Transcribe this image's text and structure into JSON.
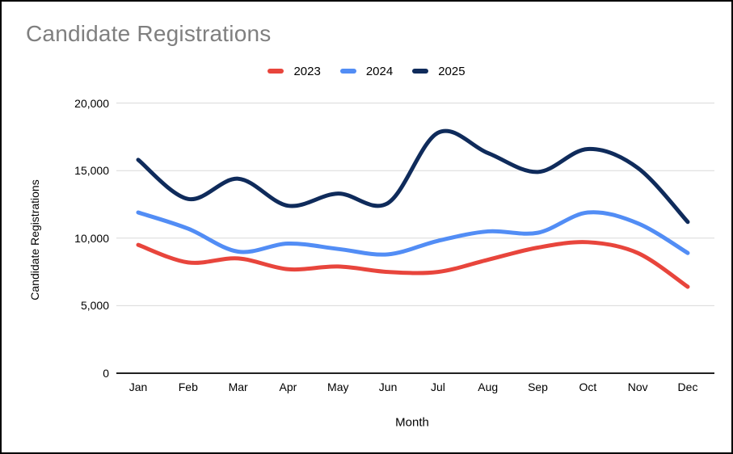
{
  "window": {
    "background": "#ffffff",
    "border_color": "#000000"
  },
  "chart": {
    "title": "Candidate Registrations",
    "title_color": "#7f7f7f",
    "y_axis_title": "Candidate Registrations",
    "x_axis_title": "Month",
    "grid_color": "#d9d9d9",
    "baseline_color": "#212121",
    "text_color": "#000000"
  },
  "chart_data": {
    "type": "line",
    "title": "Candidate Registrations",
    "xlabel": "Month",
    "ylabel": "Candidate Registrations",
    "line_style": "smooth",
    "grid": true,
    "legend_position": "top",
    "ylim": [
      0,
      20000
    ],
    "yticks": [
      0,
      5000,
      10000,
      15000,
      20000
    ],
    "ytick_labels": [
      "0",
      "5,000",
      "10,000",
      "15,000",
      "20,000"
    ],
    "categories": [
      "Jan",
      "Feb",
      "Mar",
      "Apr",
      "May",
      "Jun",
      "Jul",
      "Aug",
      "Sep",
      "Oct",
      "Nov",
      "Dec"
    ],
    "series": [
      {
        "name": "2023",
        "color": "#e8453c",
        "values": [
          9500,
          8200,
          8500,
          7700,
          7900,
          7500,
          7500,
          8400,
          9300,
          9700,
          8900,
          6400
        ]
      },
      {
        "name": "2024",
        "color": "#528df5",
        "values": [
          11900,
          10700,
          9000,
          9600,
          9200,
          8800,
          9800,
          10500,
          10400,
          11900,
          11100,
          8900
        ]
      },
      {
        "name": "2025",
        "color": "#0f2b5b",
        "values": [
          15800,
          12900,
          14400,
          12400,
          13300,
          12600,
          17800,
          16300,
          14900,
          16600,
          15200,
          11200
        ]
      }
    ]
  }
}
